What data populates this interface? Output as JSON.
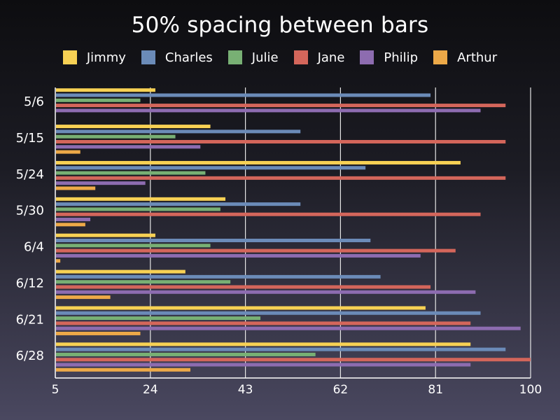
{
  "chart_data": {
    "type": "bar",
    "orientation": "horizontal",
    "title": "50% spacing between bars",
    "categories": [
      "5/6",
      "5/15",
      "5/24",
      "5/30",
      "6/4",
      "6/12",
      "6/21",
      "6/28"
    ],
    "xlim": [
      5,
      100
    ],
    "xticks": [
      5,
      24,
      43,
      62,
      81,
      100
    ],
    "grid": true,
    "legend": "top",
    "series": [
      {
        "name": "Jimmy",
        "color": "#f7d154",
        "values": [
          25,
          36,
          86,
          39,
          25,
          31,
          79,
          88
        ]
      },
      {
        "name": "Charles",
        "color": "#6b8bb8",
        "values": [
          80,
          54,
          67,
          54,
          68,
          70,
          90,
          95
        ]
      },
      {
        "name": "Julie",
        "color": "#78b074",
        "values": [
          22,
          29,
          35,
          38,
          36,
          40,
          46,
          57
        ]
      },
      {
        "name": "Jane",
        "color": "#d4665b",
        "values": [
          95,
          95,
          95,
          90,
          85,
          80,
          88,
          100
        ]
      },
      {
        "name": "Philip",
        "color": "#8d6cb0",
        "values": [
          90,
          34,
          23,
          12,
          78,
          89,
          98,
          88
        ]
      },
      {
        "name": "Arthur",
        "color": "#eda948",
        "values": [
          0,
          10,
          13,
          11,
          6,
          16,
          22,
          32
        ]
      }
    ]
  }
}
